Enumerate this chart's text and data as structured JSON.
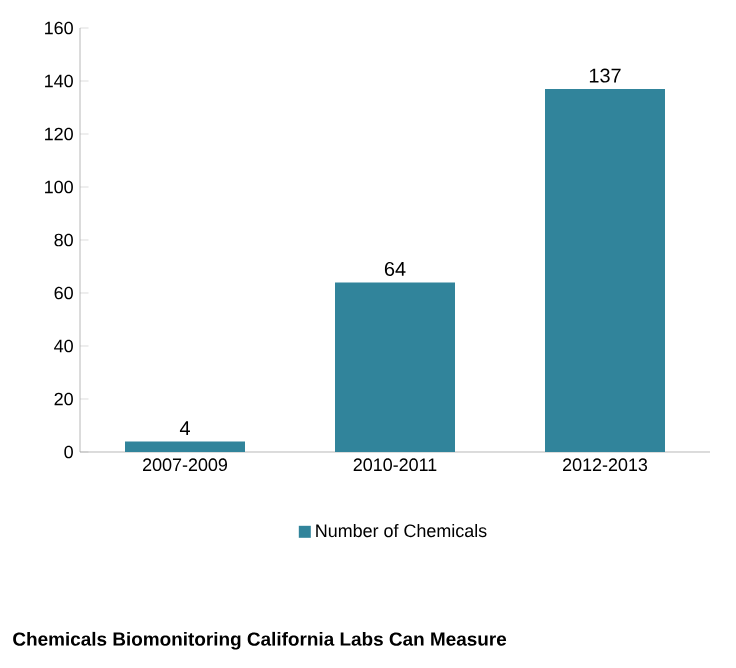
{
  "chart_data": {
    "type": "bar",
    "title": "Chemicals Biomonitoring California Labs Can Measure",
    "categories": [
      "2007-2009",
      "2010-2011",
      "2012-2013"
    ],
    "series": [
      {
        "name": "Number of Chemicals",
        "color": "#31849b",
        "values": [
          4,
          64,
          137
        ]
      }
    ],
    "ylim": [
      0,
      160
    ],
    "yticks": [
      0,
      20,
      40,
      60,
      80,
      100,
      120,
      140,
      160
    ],
    "data_labels": true,
    "legend": "bottom",
    "grid": false
  }
}
